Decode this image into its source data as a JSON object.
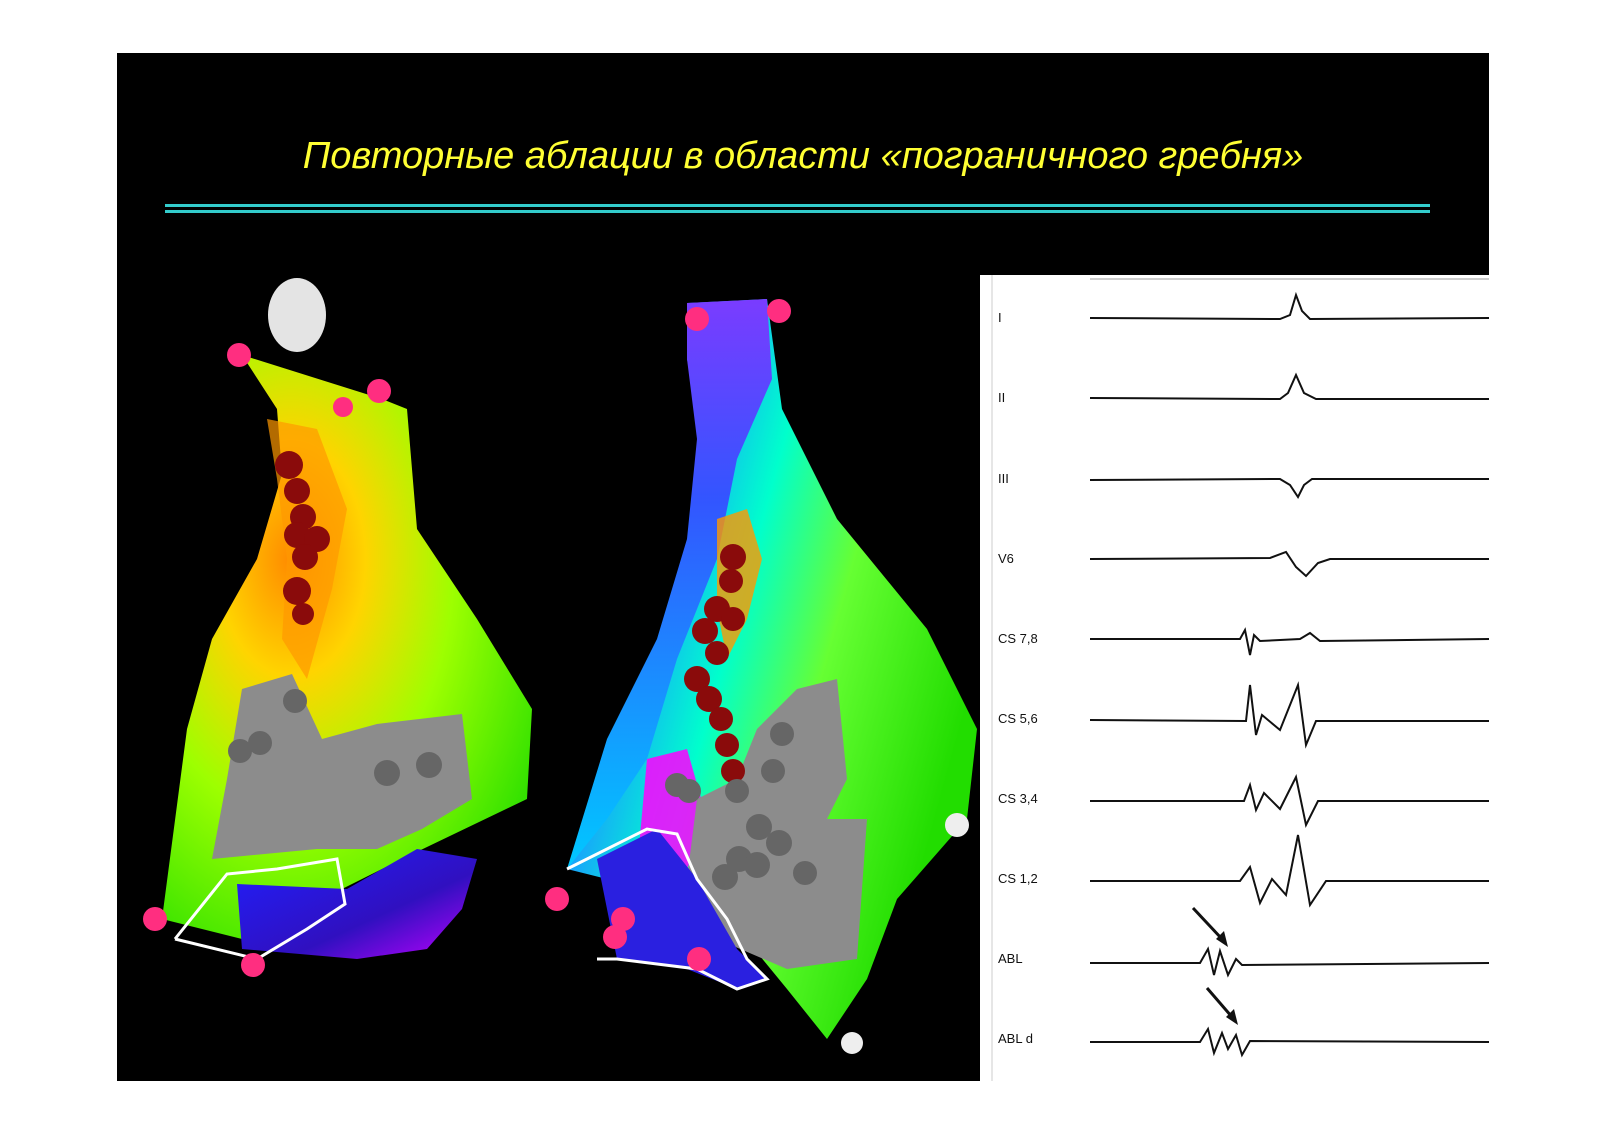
{
  "slide": {
    "title": "Повторные аблации в области «пограничного гребня»",
    "title_color": "#ffff33",
    "rule_color": "#33cccc",
    "background": "#000000"
  },
  "ecg": {
    "leads": [
      "I",
      "II",
      "III",
      "V6",
      "CS 7,8",
      "CS 5,6",
      "CS 3,4",
      "CS 1,2",
      "ABL",
      "ABL d"
    ]
  }
}
